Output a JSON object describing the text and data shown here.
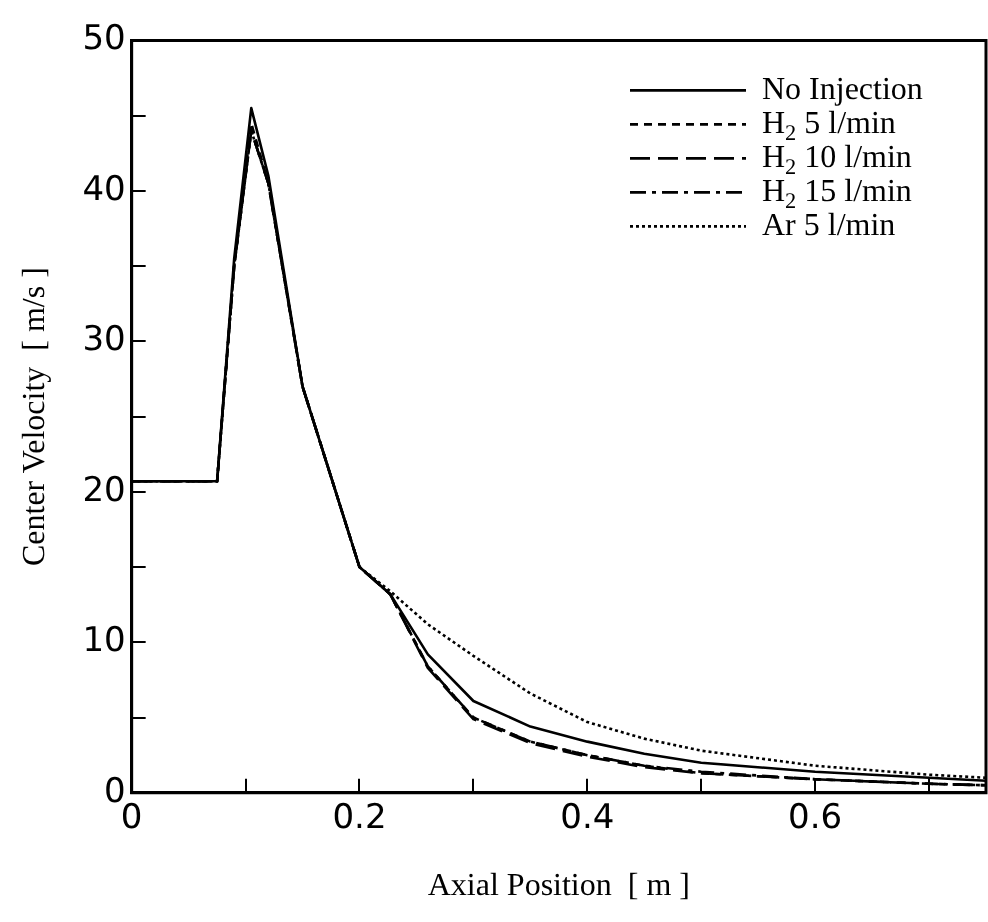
{
  "chart_data": {
    "type": "line",
    "xlabel": "Axial Position  [ m ]",
    "ylabel": "Center Velocity  [ m/s ]",
    "xlim": [
      0,
      0.75
    ],
    "ylim": [
      0,
      50
    ],
    "xticks": [
      0,
      {
        "value": 0.1,
        "label": null
      },
      0.2,
      {
        "value": 0.3,
        "label": null
      },
      0.4,
      {
        "value": 0.5,
        "label": null
      },
      0.6,
      {
        "value": 0.7,
        "label": null
      }
    ],
    "yticks": [
      0,
      {
        "value": 5,
        "label": null
      },
      10,
      {
        "value": 15,
        "label": null
      },
      20,
      {
        "value": 25,
        "label": null
      },
      30,
      {
        "value": 35,
        "label": null
      },
      40,
      {
        "value": 45,
        "label": null
      },
      50
    ],
    "x": [
      0,
      0.075,
      0.09,
      0.105,
      0.12,
      0.15,
      0.2,
      0.227,
      0.26,
      0.3,
      0.35,
      0.4,
      0.45,
      0.5,
      0.6,
      0.7,
      0.75
    ],
    "series": [
      {
        "name": "No Injection",
        "color": "#000000",
        "line_style": "solid",
        "values": [
          20.7,
          20.7,
          35.5,
          45.5,
          41,
          27,
          15,
          13.2,
          9.2,
          6.1,
          4.4,
          3.4,
          2.6,
          2.0,
          1.4,
          1.0,
          0.8
        ]
      },
      {
        "name": "H$_{2}$ 5 l/min",
        "color": "#000000",
        "line_style": "dashed",
        "values": [
          20.7,
          20.7,
          35,
          44.5,
          40.5,
          27,
          15,
          13.2,
          8.4,
          5.0,
          3.4,
          2.5,
          1.8,
          1.3,
          0.9,
          0.6,
          0.5
        ]
      },
      {
        "name": "H$_{2}$ 10 l/min",
        "color": "#000000",
        "line_style": "longdash",
        "values": [
          20.7,
          20.7,
          35,
          44,
          40.5,
          27,
          15,
          13.2,
          8.3,
          4.9,
          3.3,
          2.4,
          1.7,
          1.3,
          0.9,
          0.6,
          0.5
        ]
      },
      {
        "name": "H$_{2}$ 15 l/min",
        "color": "#000000",
        "line_style": "dashdot",
        "values": [
          20.7,
          20.7,
          35,
          44,
          40.5,
          27,
          15,
          13.2,
          8.4,
          5.0,
          3.4,
          2.5,
          1.8,
          1.4,
          0.9,
          0.6,
          0.5
        ]
      },
      {
        "name": "Ar 5 l/min",
        "color": "#000000",
        "line_style": "dotted",
        "values": [
          20.7,
          20.7,
          35,
          44,
          40.5,
          27,
          15,
          13.4,
          11.2,
          9.1,
          6.6,
          4.7,
          3.6,
          2.8,
          1.8,
          1.2,
          1.0
        ]
      }
    ],
    "legend": "top right",
    "grid": false,
    "marker": "none"
  }
}
